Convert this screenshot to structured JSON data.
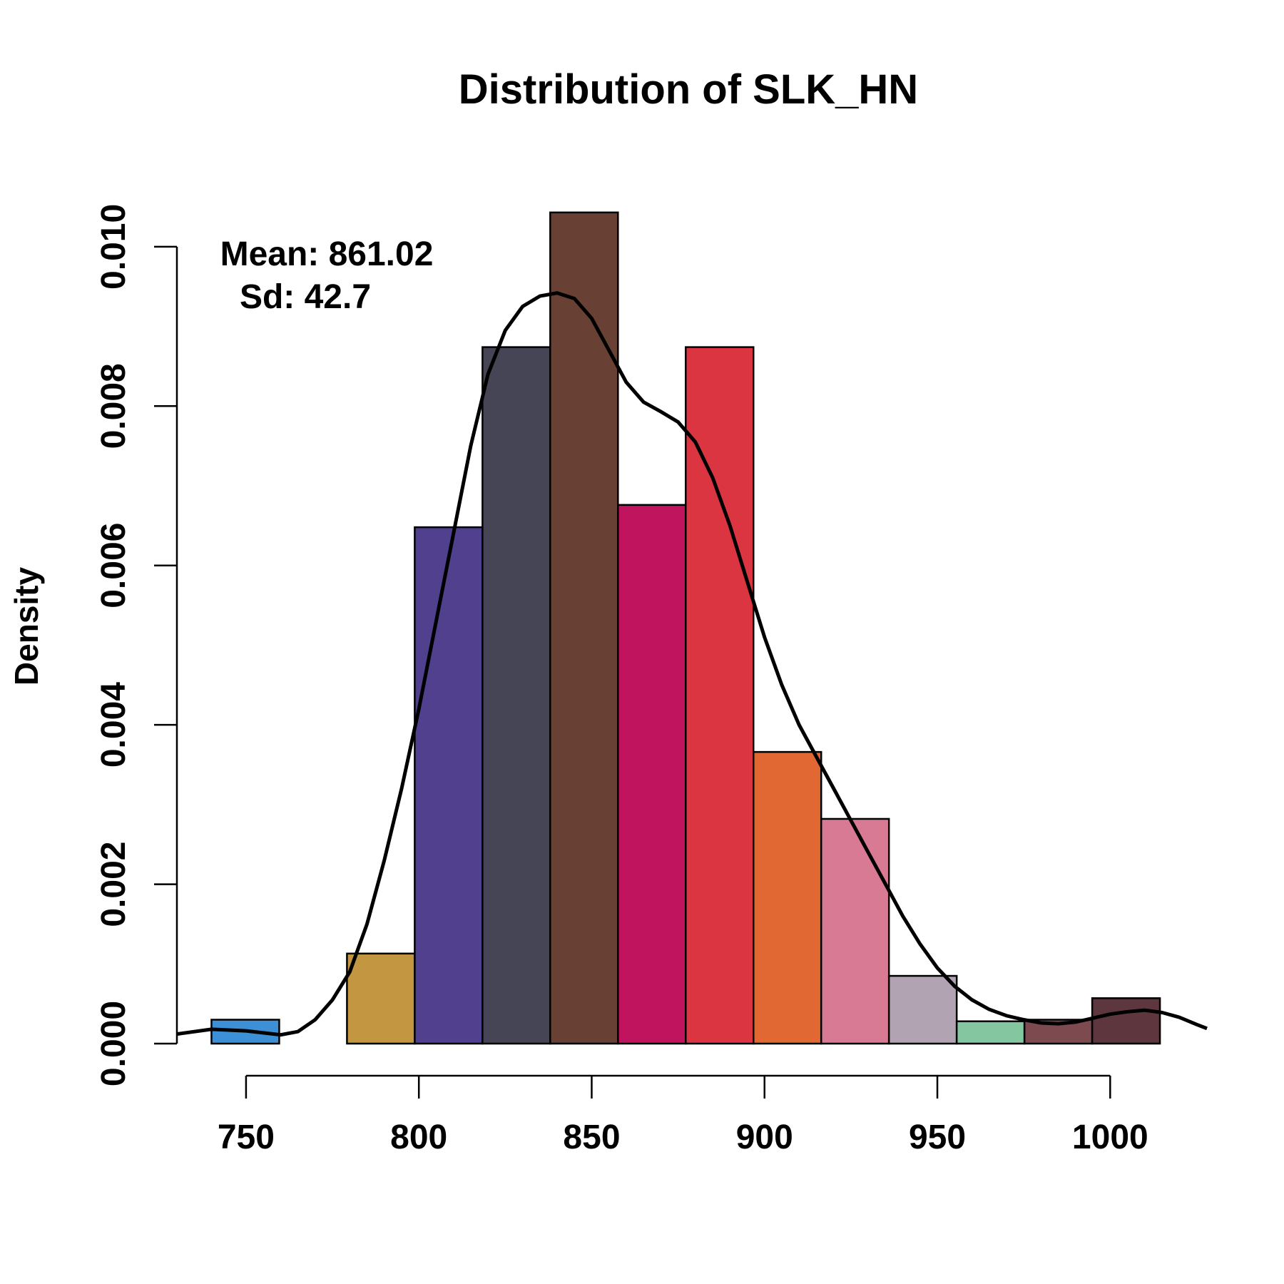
{
  "chart_data": {
    "type": "bar",
    "title": "Distribution of SLK_HN",
    "xlabel": "",
    "ylabel": "Density",
    "xlim": [
      730,
      1028
    ],
    "ylim": [
      0,
      0.0105
    ],
    "x_ticks": [
      750,
      800,
      850,
      900,
      950,
      1000
    ],
    "y_ticks": [
      0.0,
      0.002,
      0.004,
      0.006,
      0.008,
      0.01
    ],
    "y_tick_labels": [
      "0.000",
      "0.002",
      "0.004",
      "0.006",
      "0.008",
      "0.010"
    ],
    "bins": [
      {
        "start": 740.0,
        "end": 759.6,
        "density": 0.0003,
        "color": "#3d8fd6"
      },
      {
        "start": 759.6,
        "end": 779.2,
        "density": 0.0,
        "color": "#ffffff"
      },
      {
        "start": 779.2,
        "end": 798.8,
        "density": 0.00113,
        "color": "#c39741"
      },
      {
        "start": 798.8,
        "end": 818.4,
        "density": 0.00648,
        "color": "#51408d"
      },
      {
        "start": 818.4,
        "end": 838.0,
        "density": 0.00874,
        "color": "#464555"
      },
      {
        "start": 838.0,
        "end": 857.6,
        "density": 0.01043,
        "color": "#684034"
      },
      {
        "start": 857.6,
        "end": 877.2,
        "density": 0.00676,
        "color": "#c0145e"
      },
      {
        "start": 877.2,
        "end": 896.8,
        "density": 0.00874,
        "color": "#dc3542"
      },
      {
        "start": 896.8,
        "end": 916.4,
        "density": 0.00366,
        "color": "#e26833"
      },
      {
        "start": 916.4,
        "end": 936.0,
        "density": 0.00282,
        "color": "#d97a94"
      },
      {
        "start": 936.0,
        "end": 955.6,
        "density": 0.00085,
        "color": "#b1a3b2"
      },
      {
        "start": 955.6,
        "end": 975.2,
        "density": 0.00028,
        "color": "#84c6a0"
      },
      {
        "start": 975.2,
        "end": 994.8,
        "density": 0.0003,
        "color": "#7d4a4f"
      },
      {
        "start": 994.8,
        "end": 1014.4,
        "density": 0.00057,
        "color": "#5e363e"
      }
    ],
    "density_curve": {
      "x": [
        730,
        740,
        750,
        760,
        765,
        770,
        775,
        780,
        785,
        790,
        795,
        800,
        805,
        810,
        815,
        820,
        825,
        830,
        835,
        840,
        845,
        850,
        855,
        860,
        865,
        870,
        875,
        880,
        885,
        890,
        895,
        900,
        905,
        910,
        915,
        920,
        925,
        930,
        935,
        940,
        945,
        950,
        955,
        960,
        965,
        970,
        975,
        980,
        985,
        990,
        995,
        1000,
        1005,
        1010,
        1015,
        1020,
        1025,
        1028
      ],
      "y": [
        0.00012,
        0.00018,
        0.00016,
        0.00011,
        0.00015,
        0.0003,
        0.00055,
        0.0009,
        0.0015,
        0.0023,
        0.0032,
        0.0042,
        0.0053,
        0.0064,
        0.0075,
        0.0084,
        0.00895,
        0.00925,
        0.00938,
        0.00942,
        0.00935,
        0.0091,
        0.0087,
        0.0083,
        0.00805,
        0.00793,
        0.0078,
        0.00755,
        0.0071,
        0.0065,
        0.0058,
        0.0051,
        0.0045,
        0.004,
        0.0036,
        0.0032,
        0.0028,
        0.0024,
        0.002,
        0.0016,
        0.00125,
        0.00095,
        0.00072,
        0.00055,
        0.00043,
        0.00035,
        0.0003,
        0.00026,
        0.00025,
        0.00027,
        0.00032,
        0.00037,
        0.0004,
        0.00042,
        0.00039,
        0.00033,
        0.00024,
        0.00019
      ]
    },
    "annotations": {
      "mean": "Mean: 861.02",
      "sd": "Sd: 42.7"
    },
    "grid": false,
    "legend": "none"
  }
}
